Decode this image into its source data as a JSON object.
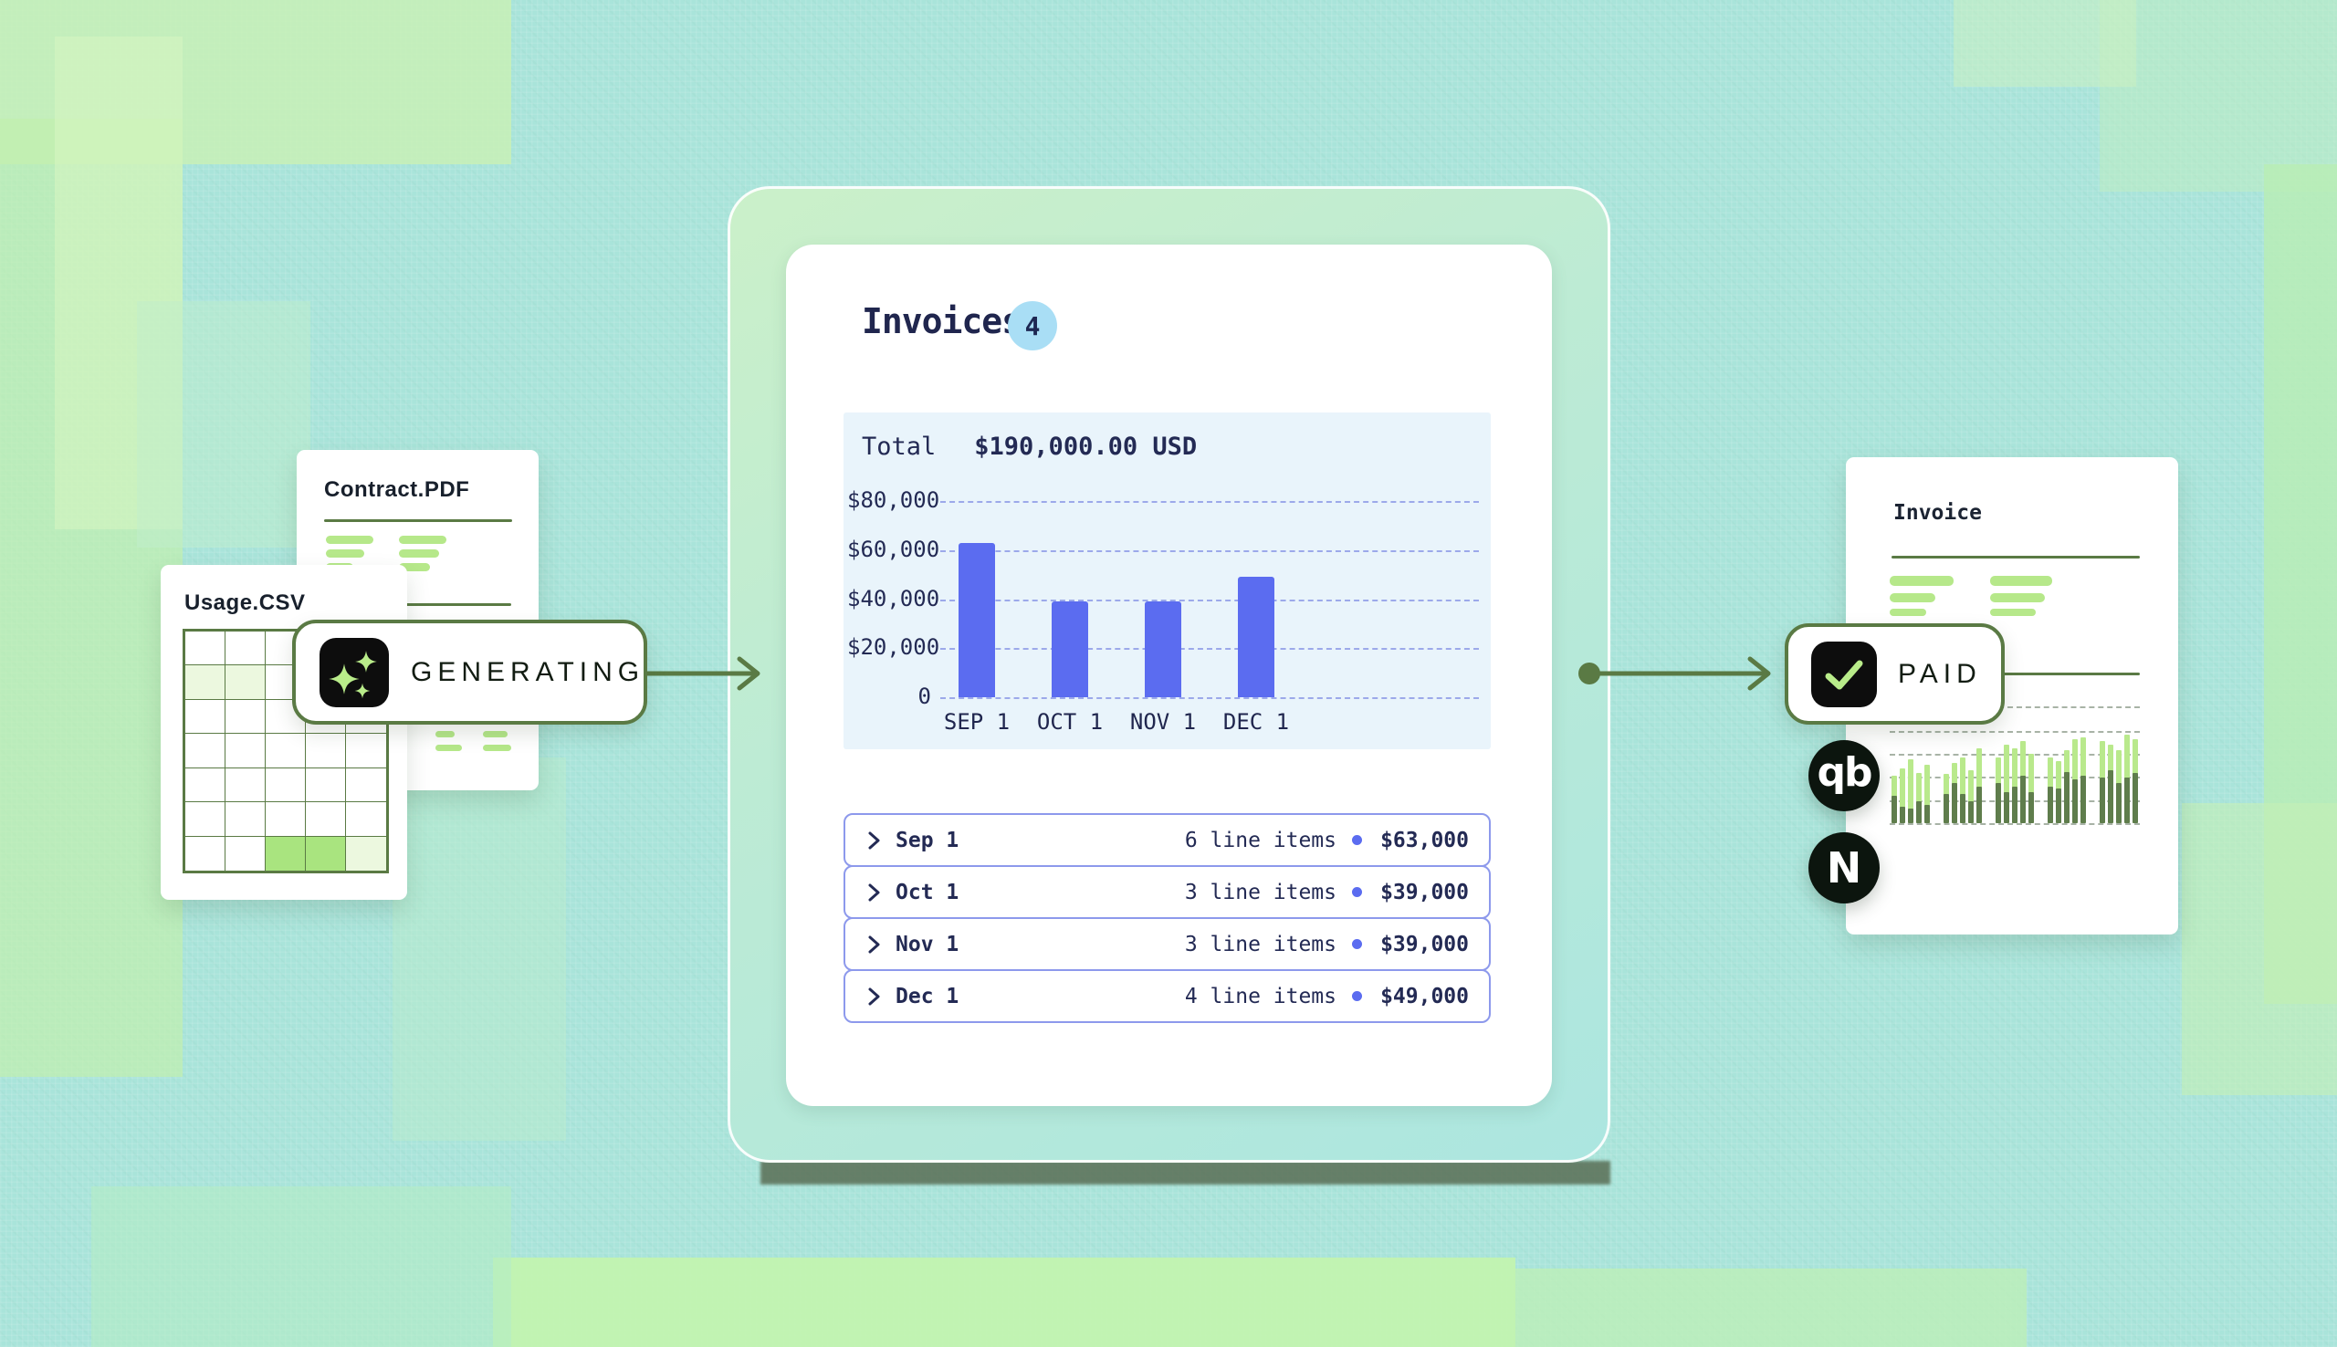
{
  "source_docs": {
    "contract_card": {
      "title": "Contract.PDF"
    },
    "usage_card": {
      "title": "Usage.CSV",
      "grid": {
        "rows": 7,
        "cols": 5,
        "pale_cells": [
          [
            2,
            1
          ],
          [
            2,
            2
          ],
          [
            7,
            5
          ]
        ],
        "bright_cells": [
          [
            7,
            3
          ],
          [
            7,
            4
          ]
        ]
      }
    }
  },
  "generating_badge": {
    "label": "GENERATING",
    "icon": "sparkles-icon"
  },
  "invoices_panel": {
    "title": "Invoices",
    "count_badge": "4",
    "total_label": "Total",
    "total_value": "$190,000.00 USD",
    "rows": [
      {
        "label": "Sep 1",
        "items": "6 line items",
        "amount": "$63,000"
      },
      {
        "label": "Oct 1",
        "items": "3 line items",
        "amount": "$39,000"
      },
      {
        "label": "Nov 1",
        "items": "3 line items",
        "amount": "$39,000"
      },
      {
        "label": "Dec 1",
        "items": "4 line items",
        "amount": "$49,000"
      }
    ]
  },
  "chart_data": {
    "type": "bar",
    "title": "Total $190,000.00 USD",
    "categories": [
      "SEP 1",
      "OCT 1",
      "NOV 1",
      "DEC 1"
    ],
    "values": [
      63000,
      39000,
      39000,
      49000
    ],
    "xlabel": "",
    "ylabel": "",
    "ylim": [
      0,
      80000
    ],
    "yticks": [
      "$80,000",
      "$60,000",
      "$40,000",
      "$20,000",
      "0"
    ],
    "grid": true,
    "legend": false,
    "bar_color": "#5b6cf0",
    "background": "#e9f4fb"
  },
  "paid_badge": {
    "label": "PAID",
    "icon": "check-icon"
  },
  "output_card": {
    "title": "Invoice",
    "sparkline_groups": [
      [
        [
          52,
          30
        ],
        [
          60,
          18
        ],
        [
          70,
          16
        ],
        [
          55,
          24
        ],
        [
          64,
          20
        ]
      ],
      [
        [
          54,
          32
        ],
        [
          66,
          44
        ],
        [
          72,
          32
        ],
        [
          58,
          24
        ],
        [
          82,
          40
        ]
      ],
      [
        [
          72,
          44
        ],
        [
          86,
          34
        ],
        [
          82,
          40
        ],
        [
          90,
          52
        ],
        [
          76,
          34
        ]
      ],
      [
        [
          72,
          40
        ],
        [
          68,
          38
        ],
        [
          80,
          56
        ],
        [
          92,
          48
        ],
        [
          94,
          52
        ]
      ],
      [
        [
          90,
          50
        ],
        [
          86,
          58
        ],
        [
          80,
          44
        ],
        [
          97,
          50
        ],
        [
          92,
          55
        ]
      ]
    ]
  },
  "integrations": [
    {
      "name": "QuickBooks",
      "glyph": "qb"
    },
    {
      "name": "NetSuite",
      "glyph": "N"
    }
  ],
  "colors": {
    "background_teal": "#a9e4da",
    "background_green": "#c2f0ae",
    "olive": "#5a7a44",
    "navy": "#20264e",
    "bar_blue": "#5b6cf0",
    "row_border": "#8d99ec",
    "light_green": "#b6e88a",
    "chart_bg": "#e9f4fb",
    "count_badge_bg": "#a9def5",
    "icon_black": "#0d0d0d"
  }
}
